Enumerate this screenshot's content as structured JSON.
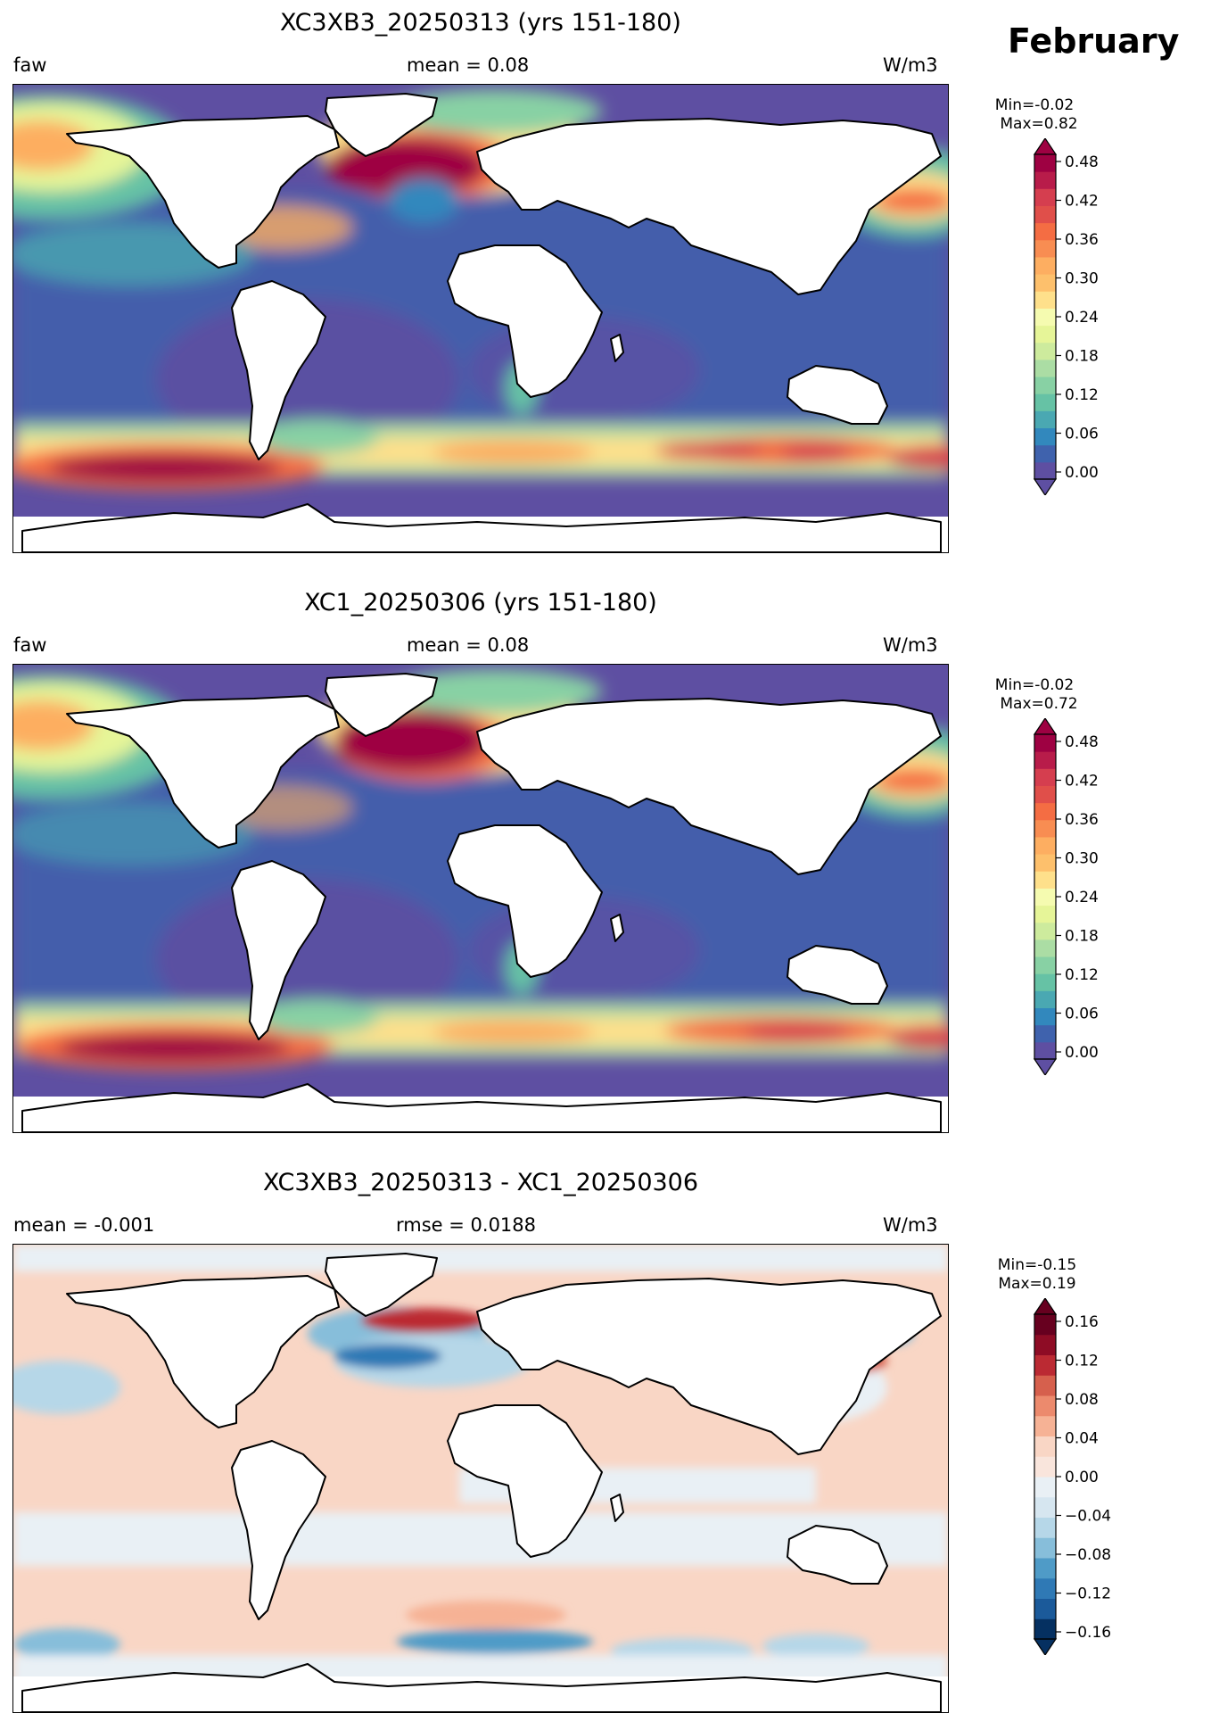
{
  "figure": {
    "month": "February",
    "units_label": "W/m3"
  },
  "panels": [
    {
      "title": "XC3XB3_20250313 (yrs 151-180)",
      "left_label": "faw",
      "center_label": "mean = 0.08",
      "right_label": "W/m3",
      "min_label": "Min=-0.02",
      "max_label": "Max=0.82",
      "colormap": "Spectral_r",
      "colorbar_ticks": [
        "0.00",
        "0.06",
        "0.12",
        "0.18",
        "0.24",
        "0.30",
        "0.36",
        "0.42",
        "0.48"
      ],
      "colorbar_colors": [
        "#5e4fa2",
        "#3f62ad",
        "#3288bd",
        "#4aa8b2",
        "#66c2a5",
        "#88d1a4",
        "#abdda4",
        "#cdeb9d",
        "#e6f598",
        "#f5fbb0",
        "#fee08b",
        "#fdc06c",
        "#fdae61",
        "#f88d52",
        "#f46d43",
        "#e04f4a",
        "#d53e4f",
        "#b81c4a",
        "#9e0142"
      ]
    },
    {
      "title": "XC1_20250306 (yrs 151-180)",
      "left_label": "faw",
      "center_label": "mean = 0.08",
      "right_label": "W/m3",
      "min_label": "Min=-0.02",
      "max_label": "Max=0.72",
      "colormap": "Spectral_r",
      "colorbar_ticks": [
        "0.00",
        "0.06",
        "0.12",
        "0.18",
        "0.24",
        "0.30",
        "0.36",
        "0.42",
        "0.48"
      ],
      "colorbar_colors": [
        "#5e4fa2",
        "#3f62ad",
        "#3288bd",
        "#4aa8b2",
        "#66c2a5",
        "#88d1a4",
        "#abdda4",
        "#cdeb9d",
        "#e6f598",
        "#f5fbb0",
        "#fee08b",
        "#fdc06c",
        "#fdae61",
        "#f88d52",
        "#f46d43",
        "#e04f4a",
        "#d53e4f",
        "#b81c4a",
        "#9e0142"
      ]
    },
    {
      "title": "XC3XB3_20250313 - XC1_20250306",
      "left_label": "mean = -0.001",
      "center_label": "rmse = 0.0188",
      "right_label": "W/m3",
      "min_label": "Min=-0.15",
      "max_label": "Max=0.19",
      "colormap": "RdBu_r",
      "colorbar_ticks": [
        "−0.16",
        "−0.12",
        "−0.08",
        "−0.04",
        "0.00",
        "0.04",
        "0.08",
        "0.12",
        "0.16"
      ],
      "colorbar_colors": [
        "#053061",
        "#1b5a9a",
        "#2f79b5",
        "#4f9bc7",
        "#87beda",
        "#b6d7e8",
        "#d6e6f0",
        "#e9f0f5",
        "#f9e5dc",
        "#f9d6c5",
        "#f6b295",
        "#ec8a6d",
        "#d6604d",
        "#bb2a33",
        "#8e0c25",
        "#67001f"
      ]
    }
  ]
}
